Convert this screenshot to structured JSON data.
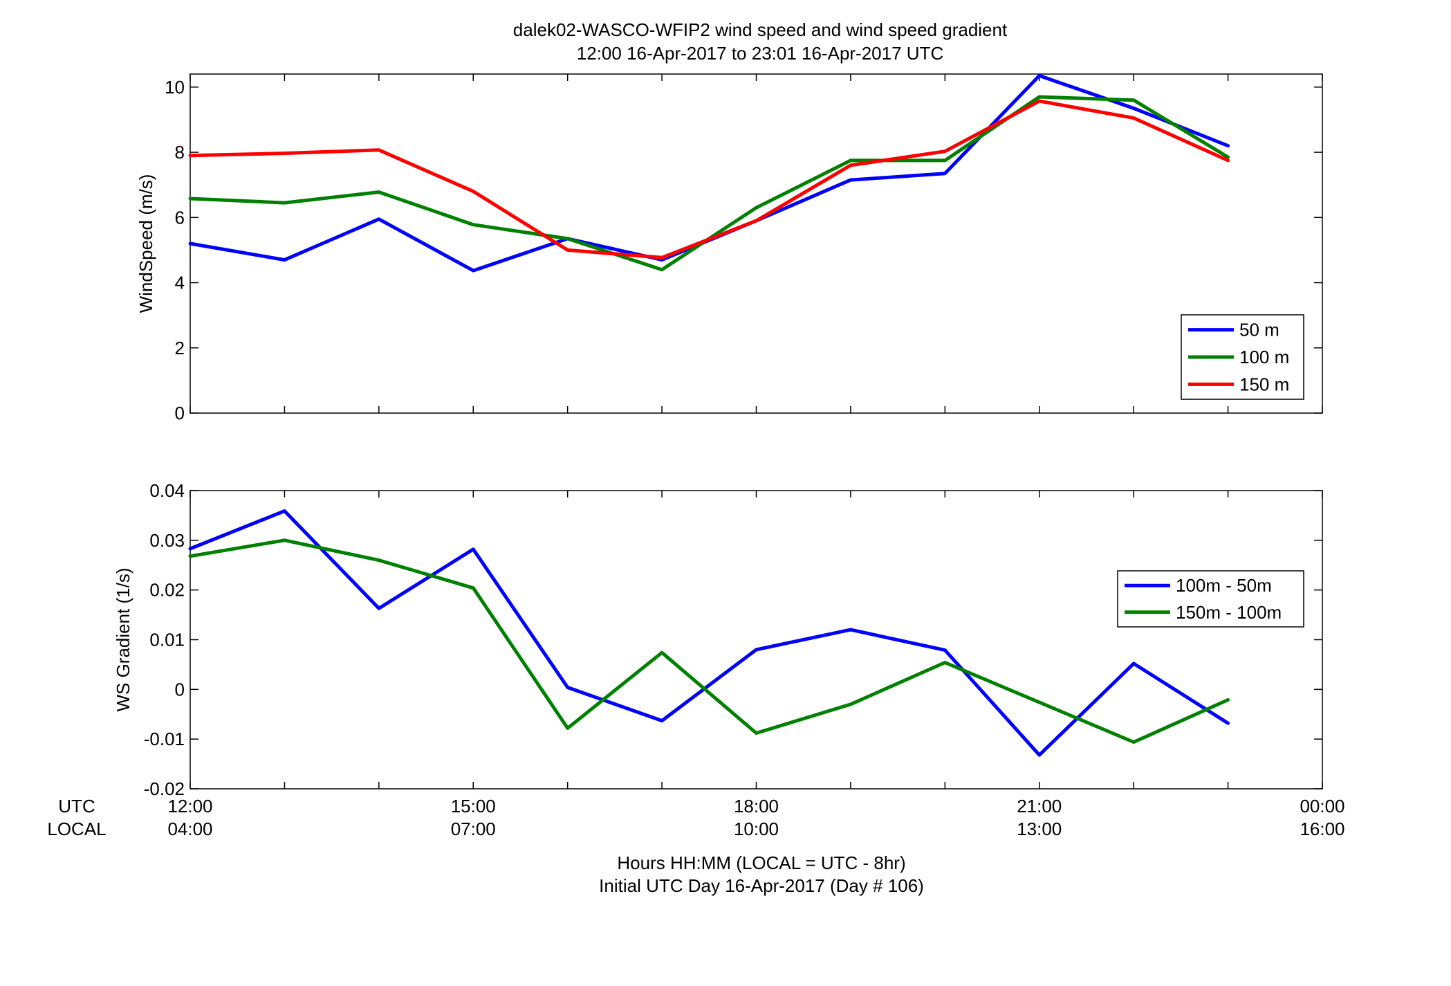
{
  "figure": {
    "title_line1": "dalek02-WASCO-WFIP2  wind speed and wind speed gradient",
    "title_line2": "12:00 16-Apr-2017 to 23:01 16-Apr-2017  UTC",
    "row_label_utc": "UTC",
    "row_label_local": "LOCAL",
    "xlabel_line1": "Hours HH:MM  (LOCAL = UTC - 8hr)",
    "xlabel_line2": "Initial UTC Day 16-Apr-2017 (Day # 106)",
    "utc_ticks": [
      "12:00",
      "15:00",
      "18:00",
      "21:00",
      "00:00"
    ],
    "local_ticks": [
      "04:00",
      "07:00",
      "10:00",
      "13:00",
      "16:00"
    ]
  },
  "chart_data": [
    {
      "type": "line",
      "ylabel": "WindSpeed (m/s)",
      "xlim": [
        12,
        24
      ],
      "ylim": [
        0,
        10.4
      ],
      "yticks": [
        0,
        2,
        4,
        6,
        8,
        10
      ],
      "ytick_labels": [
        "0",
        "2",
        "4",
        "6",
        "8",
        "10"
      ],
      "x": [
        12,
        13,
        14,
        15,
        16,
        17,
        18,
        19,
        20,
        21,
        22,
        23
      ],
      "legend_position": "bottom-right",
      "series": [
        {
          "name": "50 m",
          "color": "#0000ff",
          "values": [
            5.2,
            4.7,
            5.95,
            4.37,
            5.35,
            4.7,
            5.9,
            7.15,
            7.35,
            10.35,
            9.35,
            8.2
          ]
        },
        {
          "name": "100 m",
          "color": "#008000",
          "values": [
            6.58,
            6.45,
            6.78,
            5.78,
            5.35,
            4.4,
            6.3,
            7.75,
            7.75,
            9.7,
            9.6,
            7.85
          ]
        },
        {
          "name": "150 m",
          "color": "#ff0000",
          "values": [
            7.9,
            7.97,
            8.07,
            6.8,
            5.0,
            4.77,
            5.9,
            7.6,
            8.03,
            9.57,
            9.05,
            7.75
          ]
        }
      ]
    },
    {
      "type": "line",
      "ylabel": "WS Gradient (1/s)",
      "xlim": [
        12,
        24
      ],
      "ylim": [
        -0.02,
        0.04
      ],
      "yticks": [
        -0.02,
        -0.01,
        0,
        0.01,
        0.02,
        0.03,
        0.04
      ],
      "ytick_labels": [
        "-0.02",
        "-0.01",
        "0",
        "0.01",
        "0.02",
        "0.03",
        "0.04"
      ],
      "x": [
        12,
        13,
        14,
        15,
        16,
        17,
        18,
        19,
        20,
        21,
        22,
        23
      ],
      "legend_position": "top-right",
      "series": [
        {
          "name": "100m - 50m",
          "color": "#0000ff",
          "values": [
            0.0283,
            0.0359,
            0.0163,
            0.0282,
            0.0004,
            -0.0063,
            0.008,
            0.012,
            0.0079,
            -0.0132,
            0.0052,
            -0.0068
          ]
        },
        {
          "name": "150m - 100m",
          "color": "#008000",
          "values": [
            0.0268,
            0.03,
            0.026,
            0.0204,
            -0.0078,
            0.0074,
            -0.0088,
            -0.003,
            0.0054,
            -0.0026,
            -0.0106,
            -0.0021
          ]
        }
      ]
    }
  ]
}
